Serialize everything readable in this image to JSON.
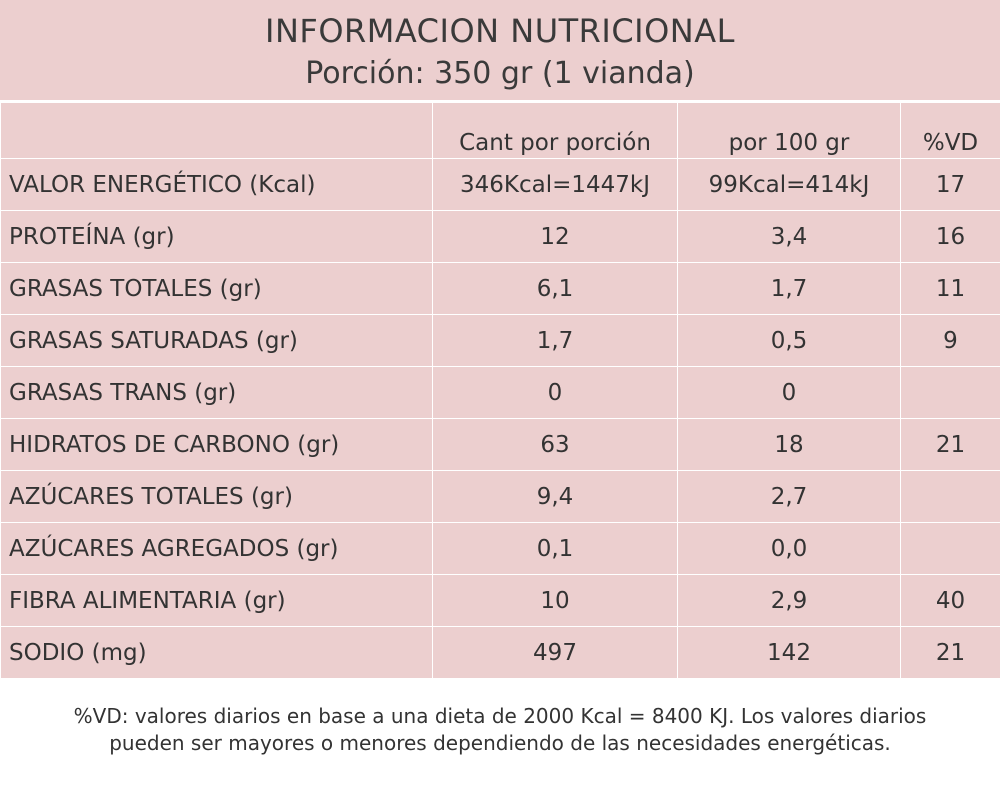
{
  "header": {
    "title": "INFORMACION NUTRICIONAL",
    "subtitle": "Porción: 350 gr (1 vianda)"
  },
  "table": {
    "columns": [
      "",
      "Cant por porción",
      "por 100 gr",
      "%VD"
    ],
    "rows": [
      {
        "label": "VALOR ENERGÉTICO  (Kcal)",
        "per_portion": "346Kcal=1447kJ",
        "per_100g": "99Kcal=414kJ",
        "vd": "17"
      },
      {
        "label": "PROTEÍNA (gr)",
        "per_portion": "12",
        "per_100g": "3,4",
        "vd": "16"
      },
      {
        "label": "GRASAS TOTALES (gr)",
        "per_portion": "6,1",
        "per_100g": "1,7",
        "vd": "11"
      },
      {
        "label": "GRASAS SATURADAS (gr)",
        "per_portion": "1,7",
        "per_100g": "0,5",
        "vd": "9"
      },
      {
        "label": "GRASAS TRANS (gr)",
        "per_portion": "0",
        "per_100g": "0",
        "vd": ""
      },
      {
        "label": "HIDRATOS DE CARBONO (gr)",
        "per_portion": "63",
        "per_100g": "18",
        "vd": "21"
      },
      {
        "label": "AZÚCARES TOTALES (gr)",
        "per_portion": "9,4",
        "per_100g": "2,7",
        "vd": ""
      },
      {
        "label": "AZÚCARES AGREGADOS (gr)",
        "per_portion": "0,1",
        "per_100g": "0,0",
        "vd": ""
      },
      {
        "label": "FIBRA ALIMENTARIA (gr)",
        "per_portion": "10",
        "per_100g": "2,9",
        "vd": "40"
      },
      {
        "label": "SODIO (mg)",
        "per_portion": "497",
        "per_100g": "142",
        "vd": "21"
      }
    ]
  },
  "footnote": {
    "line1": "%VD:  valores diarios en base a una dieta de 2000 Kcal = 8400 KJ. Los valores diarios",
    "line2": "pueden ser mayores o menores dependiendo de las necesidades energéticas."
  },
  "colors": {
    "background": "#eccfcf",
    "text": "#333333",
    "divider": "#ffffff"
  }
}
